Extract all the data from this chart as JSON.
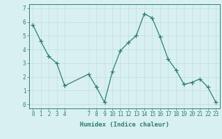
{
  "x": [
    0,
    1,
    2,
    3,
    4,
    7,
    8,
    9,
    10,
    11,
    12,
    13,
    14,
    15,
    16,
    17,
    18,
    19,
    20,
    21,
    22,
    23
  ],
  "y": [
    5.8,
    4.6,
    3.5,
    3.0,
    1.35,
    2.2,
    1.25,
    0.15,
    2.4,
    3.9,
    4.5,
    5.0,
    6.6,
    6.3,
    4.9,
    3.3,
    2.5,
    1.45,
    1.6,
    1.85,
    1.25,
    0.15
  ],
  "line_color": "#2e7d6e",
  "marker": "+",
  "marker_size": 4,
  "bg_color": "#d9f0f0",
  "grid_color": "#c0dede",
  "xlabel": "Humidex (Indice chaleur)",
  "xlim": [
    -0.5,
    23.5
  ],
  "ylim": [
    -0.3,
    7.3
  ],
  "xticks": [
    0,
    1,
    2,
    3,
    4,
    7,
    8,
    9,
    10,
    11,
    12,
    13,
    14,
    15,
    16,
    17,
    18,
    19,
    20,
    21,
    22,
    23
  ],
  "yticks": [
    0,
    1,
    2,
    3,
    4,
    5,
    6,
    7
  ],
  "tick_color": "#2e7d6e",
  "label_fontsize": 6.5,
  "tick_fontsize": 5.5
}
